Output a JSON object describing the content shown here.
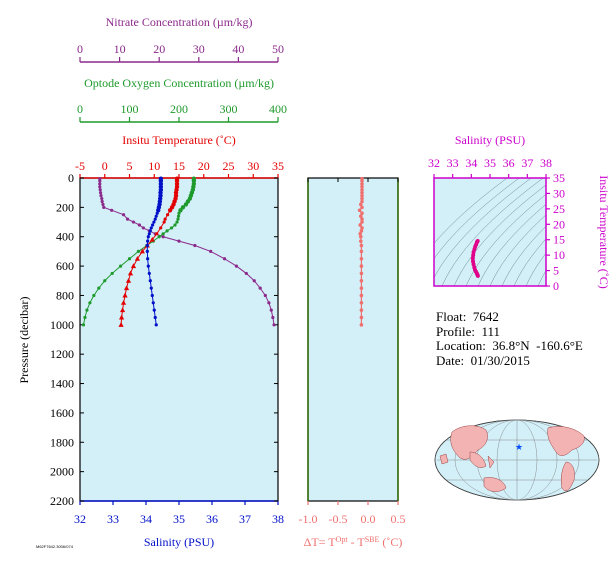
{
  "info": {
    "float": "Float:  7642",
    "profile": "Profile:  111",
    "location": "Location:  36.8°N  -160.6°E",
    "date": "Date:  01/30/2015"
  },
  "footnote": "M62F7642.3006/074",
  "colors": {
    "nitrate": "#8b2a8b",
    "oxygen": "#1e9a2c",
    "temperature": "#e30000",
    "salinity": "#0010c8",
    "deltaT": "#f07070",
    "salinity_ts": "#cc00cc",
    "panel_bg": "#d3eff8",
    "star": "#0050ff"
  },
  "chart_data": [
    {
      "type": "line",
      "panel": "profile",
      "ylabel": "Pressure (decibar)",
      "ylim": [
        2200,
        0
      ],
      "yticks": [
        "0",
        "200",
        "400",
        "600",
        "800",
        "1000",
        "1200",
        "1400",
        "1600",
        "1800",
        "2000",
        "2200"
      ],
      "axes": {
        "nitrate": {
          "label": "Nitrate Concentration (µm/kg)",
          "range": [
            0,
            50
          ],
          "ticks": [
            "0",
            "10",
            "20",
            "30",
            "40",
            "50"
          ]
        },
        "oxygen": {
          "label": "Optode Oxygen Concentration (µm/kg)",
          "range": [
            0,
            400
          ],
          "ticks": [
            "0",
            "100",
            "200",
            "300",
            "400"
          ]
        },
        "temperature": {
          "label": "Insitu Temperature (˚C)",
          "range": [
            -5,
            35
          ],
          "ticks": [
            "-5",
            "0",
            "5",
            "10",
            "15",
            "20",
            "25",
            "30",
            "35"
          ]
        },
        "salinity": {
          "label": "Salinity (PSU)",
          "range": [
            32,
            38
          ],
          "ticks": [
            "32",
            "33",
            "34",
            "35",
            "36",
            "37",
            "38"
          ]
        }
      },
      "series": [
        {
          "name": "Nitrate",
          "axis": "nitrate",
          "marker": "dot",
          "p": [
            5,
            20,
            40,
            60,
            80,
            100,
            120,
            140,
            160,
            180,
            200,
            220,
            250,
            280,
            300,
            320,
            340,
            360,
            380,
            400,
            430,
            460,
            500,
            550,
            600,
            650,
            700,
            750,
            800,
            850,
            900,
            950,
            1000
          ],
          "v": [
            5,
            5,
            5,
            5,
            5.1,
            5.2,
            5.3,
            5.5,
            5.6,
            5.8,
            6,
            8,
            11,
            12,
            13.5,
            15,
            16,
            17.5,
            19,
            21,
            25,
            29,
            33,
            36.5,
            39.5,
            42,
            44,
            45.5,
            46.8,
            47.7,
            48.3,
            48.7,
            49
          ]
        },
        {
          "name": "Oxygen",
          "axis": "oxygen",
          "marker": "dot",
          "p": [
            5,
            20,
            40,
            60,
            80,
            100,
            120,
            140,
            160,
            180,
            200,
            220,
            240,
            260,
            280,
            300,
            320,
            340,
            360,
            380,
            400,
            430,
            460,
            500,
            550,
            600,
            650,
            700,
            750,
            800,
            850,
            900,
            950,
            1000
          ],
          "v": [
            230,
            230,
            230,
            229,
            228,
            226,
            224,
            222,
            218,
            214,
            208,
            203,
            200,
            199,
            198,
            196,
            192,
            185,
            176,
            168,
            160,
            148,
            135,
            118,
            100,
            82,
            65,
            50,
            38,
            28,
            20,
            14,
            10,
            7
          ]
        },
        {
          "name": "Temperature",
          "axis": "temperature",
          "marker": "triangle",
          "p": [
            5,
            20,
            40,
            60,
            80,
            100,
            120,
            140,
            160,
            180,
            200,
            220,
            250,
            280,
            300,
            340,
            380,
            420,
            460,
            500,
            550,
            600,
            650,
            700,
            750,
            800,
            850,
            900,
            950,
            1000
          ],
          "v": [
            14.6,
            14.6,
            14.6,
            14.6,
            14.5,
            14.4,
            14.4,
            14.3,
            14.1,
            13.9,
            13.6,
            13.2,
            12.7,
            12.2,
            12,
            11.3,
            10.5,
            9.6,
            8.6,
            7.6,
            6.6,
            5.8,
            5.2,
            4.8,
            4.4,
            4.1,
            3.8,
            3.6,
            3.4,
            3.3
          ]
        },
        {
          "name": "Salinity",
          "axis": "salinity",
          "marker": "dot",
          "p": [
            5,
            20,
            40,
            60,
            80,
            100,
            120,
            140,
            160,
            180,
            200,
            220,
            240,
            260,
            280,
            300,
            320,
            340,
            360,
            380,
            400,
            430,
            460,
            500,
            550,
            600,
            650,
            700,
            750,
            800,
            850,
            900,
            950,
            1000
          ],
          "v": [
            34.45,
            34.45,
            34.45,
            34.45,
            34.45,
            34.44,
            34.44,
            34.43,
            34.42,
            34.41,
            34.39,
            34.37,
            34.34,
            34.31,
            34.28,
            34.24,
            34.2,
            34.16,
            34.13,
            34.1,
            34.07,
            34.05,
            34.04,
            34.04,
            34.05,
            34.07,
            34.1,
            34.13,
            34.16,
            34.19,
            34.22,
            34.25,
            34.28,
            34.31
          ]
        }
      ]
    },
    {
      "type": "line",
      "panel": "deltaT",
      "xlabel": "ΔT= T^Opt - T^SBE (˚C)",
      "xlim": [
        -1.0,
        0.5
      ],
      "xticks": [
        "-1.0",
        "-0.5",
        "0.0",
        "0.5"
      ],
      "ylim": [
        2200,
        0
      ],
      "series": [
        {
          "name": "ΔT",
          "marker": "dot",
          "p": [
            5,
            20,
            40,
            60,
            80,
            100,
            120,
            140,
            160,
            180,
            200,
            220,
            240,
            260,
            280,
            300,
            320,
            340,
            360,
            380,
            400,
            430,
            460,
            500,
            550,
            600,
            650,
            700,
            750,
            800,
            850,
            900,
            950,
            1000
          ],
          "v": [
            -0.1,
            -0.1,
            -0.1,
            -0.1,
            -0.1,
            -0.1,
            -0.1,
            -0.1,
            -0.1,
            -0.12,
            -0.1,
            -0.14,
            -0.1,
            -0.12,
            -0.1,
            -0.1,
            -0.13,
            -0.1,
            -0.11,
            -0.13,
            -0.12,
            -0.12,
            -0.11,
            -0.11,
            -0.11,
            -0.11,
            -0.11,
            -0.11,
            -0.11,
            -0.11,
            -0.11,
            -0.11,
            -0.11,
            -0.11
          ]
        }
      ]
    },
    {
      "type": "scatter",
      "panel": "TS",
      "xlabel": "Salinity (PSU)",
      "ylabel": "Insitu Temperature (˚C)",
      "xlim": [
        32,
        38
      ],
      "ylim": [
        0,
        35
      ],
      "xticks": [
        "32",
        "33",
        "34",
        "35",
        "36",
        "37",
        "38"
      ],
      "yticks": [
        "0",
        "5",
        "10",
        "15",
        "20",
        "25",
        "30",
        "35"
      ],
      "series": [
        {
          "name": "T-S",
          "s": [
            34.34,
            34.3,
            34.26,
            34.21,
            34.17,
            34.12,
            34.1,
            34.08,
            34.09,
            34.12,
            34.16,
            34.2,
            34.25,
            34.3,
            34.33,
            34.35
          ],
          "t": [
            14.6,
            14.2,
            13.5,
            12.8,
            12,
            11,
            10,
            9,
            8,
            7,
            6,
            5.2,
            4.6,
            4.0,
            3.6,
            3.3
          ]
        }
      ]
    }
  ]
}
